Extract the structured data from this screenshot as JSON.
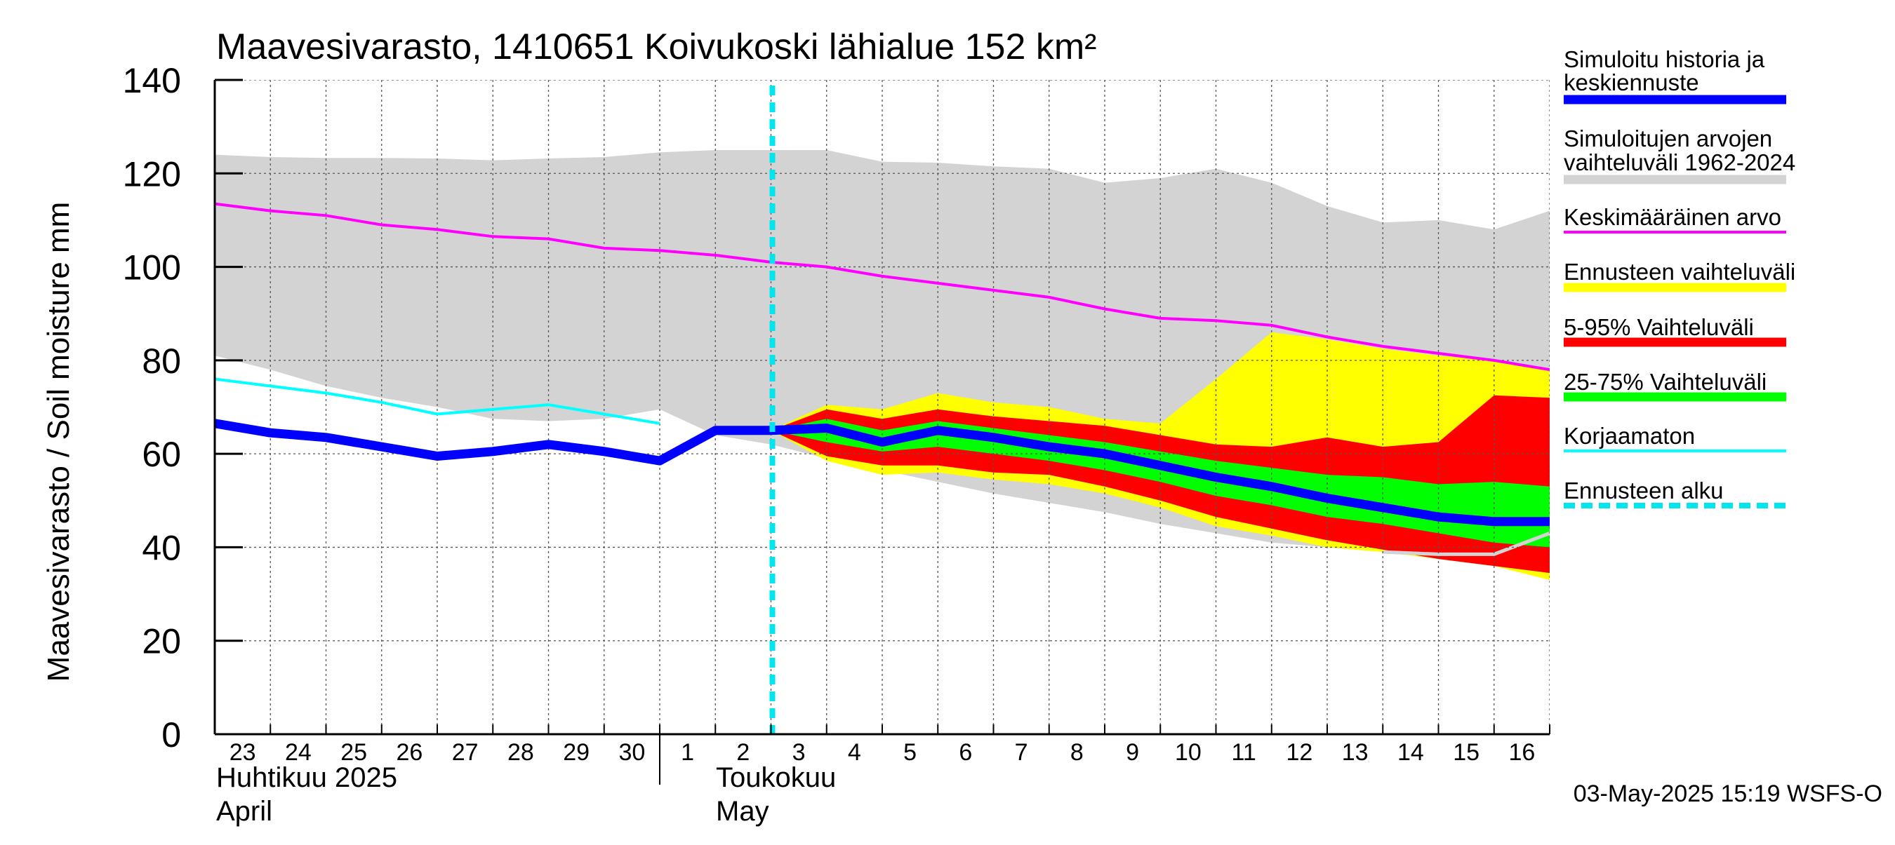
{
  "chart_data": {
    "type": "area",
    "title": "Maavesivarasto, 1410651 Koivukoski lähialue 152 km²",
    "ylabel": "Maavesivarasto / Soil moisture   mm",
    "ylim": [
      0,
      140
    ],
    "yticks": [
      "0",
      "20",
      "40",
      "60",
      "80",
      "100",
      "120",
      "140"
    ],
    "grid": true,
    "x_day_labels": [
      "23",
      "24",
      "25",
      "26",
      "27",
      "28",
      "29",
      "30",
      "1",
      "2",
      "3",
      "4",
      "5",
      "6",
      "7",
      "8",
      "9",
      "10",
      "11",
      "12",
      "13",
      "14",
      "15",
      "16"
    ],
    "month_labels": {
      "april_fi": "Huhtikuu  2025",
      "april_en": "April",
      "may_fi": "Toukokuu",
      "may_en": "May"
    },
    "forecast_start_day": 10,
    "timestamp": "03-May-2025 15:19 WSFS-O",
    "colors": {
      "history": "#0000ff",
      "range_hist": "#d3d3d3",
      "mean": "#ff00ff",
      "forecast_range": "#ffff00",
      "p5_95": "#ff0000",
      "p25_75": "#00ff00",
      "uncorrected": "#00ffff",
      "forecast_start": "#00e5ee",
      "lower_forecast_grey": "#d3d3d3"
    },
    "series": {
      "range_hist_upper": [
        124,
        123.5,
        123.3,
        123.3,
        123.2,
        122.8,
        123.2,
        123.5,
        124.5,
        125,
        125,
        125,
        122.5,
        122.3,
        121.5,
        121,
        118,
        119,
        121,
        118,
        113,
        109.5,
        110,
        108,
        112
      ],
      "range_hist_lower": [
        81,
        78,
        74.5,
        72,
        70,
        67.5,
        67,
        67.5,
        69.5,
        64,
        62,
        59,
        56.5,
        54,
        51.5,
        49.5,
        47.5,
        45,
        43,
        41,
        40,
        39,
        38,
        37,
        33
      ],
      "mean": [
        113.5,
        112,
        111,
        109,
        108,
        106.5,
        106,
        104,
        103.5,
        102.5,
        101,
        100,
        98,
        96.5,
        95,
        93.5,
        91,
        89,
        88.5,
        87.5,
        85,
        83,
        81.5,
        80,
        78
      ],
      "uncorrected": [
        76,
        74.5,
        73,
        71,
        68.5,
        69.5,
        70.5,
        68.5,
        66.5
      ],
      "history": [
        66.5,
        64.5,
        63.5,
        61.5,
        59.5,
        60.5,
        62,
        60.5,
        58.5,
        65,
        65
      ],
      "forecast_x": [
        10,
        11,
        12,
        13,
        14,
        15,
        16,
        17,
        18,
        19,
        20,
        21,
        22,
        23,
        24
      ],
      "forecast_median": [
        65,
        65.5,
        62.5,
        65,
        63.5,
        61.5,
        60,
        57.5,
        55,
        53,
        50.5,
        48.5,
        46.5,
        45.5,
        45.5
      ],
      "fc_range_upper": [
        65,
        70.5,
        69.5,
        73,
        71,
        70,
        67.5,
        66.5,
        76,
        86,
        84.5,
        82.5,
        81,
        80,
        78
      ],
      "fc_range_lower": [
        65,
        58.5,
        55.5,
        56,
        54.5,
        53.5,
        51.5,
        48.5,
        44.5,
        42.5,
        40,
        39,
        37.5,
        36,
        33
      ],
      "p5_95_upper": [
        65,
        69.5,
        67.5,
        69.5,
        68,
        67,
        66,
        64,
        62,
        61.5,
        63.5,
        61.5,
        62.5,
        72.5,
        72
      ],
      "p5_95_lower": [
        65,
        59.5,
        57.5,
        57.5,
        56,
        55.5,
        53,
        50,
        46.5,
        44,
        41.5,
        39.5,
        37.5,
        36,
        34.5
      ],
      "p25_75_upper": [
        65,
        67.5,
        65,
        67,
        65.5,
        64,
        62.5,
        60.5,
        58.5,
        57,
        55.5,
        55,
        53.5,
        54,
        53
      ],
      "p25_75_lower": [
        65,
        62.5,
        60.5,
        61.5,
        60,
        58.5,
        56.5,
        54,
        51,
        49,
        46.5,
        45,
        43,
        41,
        40
      ],
      "lower_forecast_grey_x": [
        21,
        22,
        23,
        24
      ],
      "lower_forecast_grey": [
        39,
        38.5,
        38.5,
        43
      ]
    },
    "legend": [
      {
        "key": "history",
        "label_lines": [
          "Simuloitu historia ja",
          "keskiennuste"
        ],
        "style": "thick"
      },
      {
        "key": "range_hist",
        "label_lines": [
          "Simuloitujen arvojen",
          "vaihteluväli 1962-2024"
        ],
        "style": "medium"
      },
      {
        "key": "mean",
        "label_lines": [
          "Keskimääräinen arvo"
        ],
        "style": "thin"
      },
      {
        "key": "forecast_range",
        "label_lines": [
          "Ennusteen vaihteluväli"
        ],
        "style": "medium"
      },
      {
        "key": "p5_95",
        "label_lines": [
          "5-95% Vaihteluväli"
        ],
        "style": "medium"
      },
      {
        "key": "p25_75",
        "label_lines": [
          "25-75% Vaihteluväli"
        ],
        "style": "medium"
      },
      {
        "key": "uncorrected",
        "label_lines": [
          "Korjaamaton"
        ],
        "style": "thin"
      },
      {
        "key": "forecast_start",
        "label_lines": [
          "Ennusteen alku"
        ],
        "style": "dashed"
      }
    ]
  }
}
